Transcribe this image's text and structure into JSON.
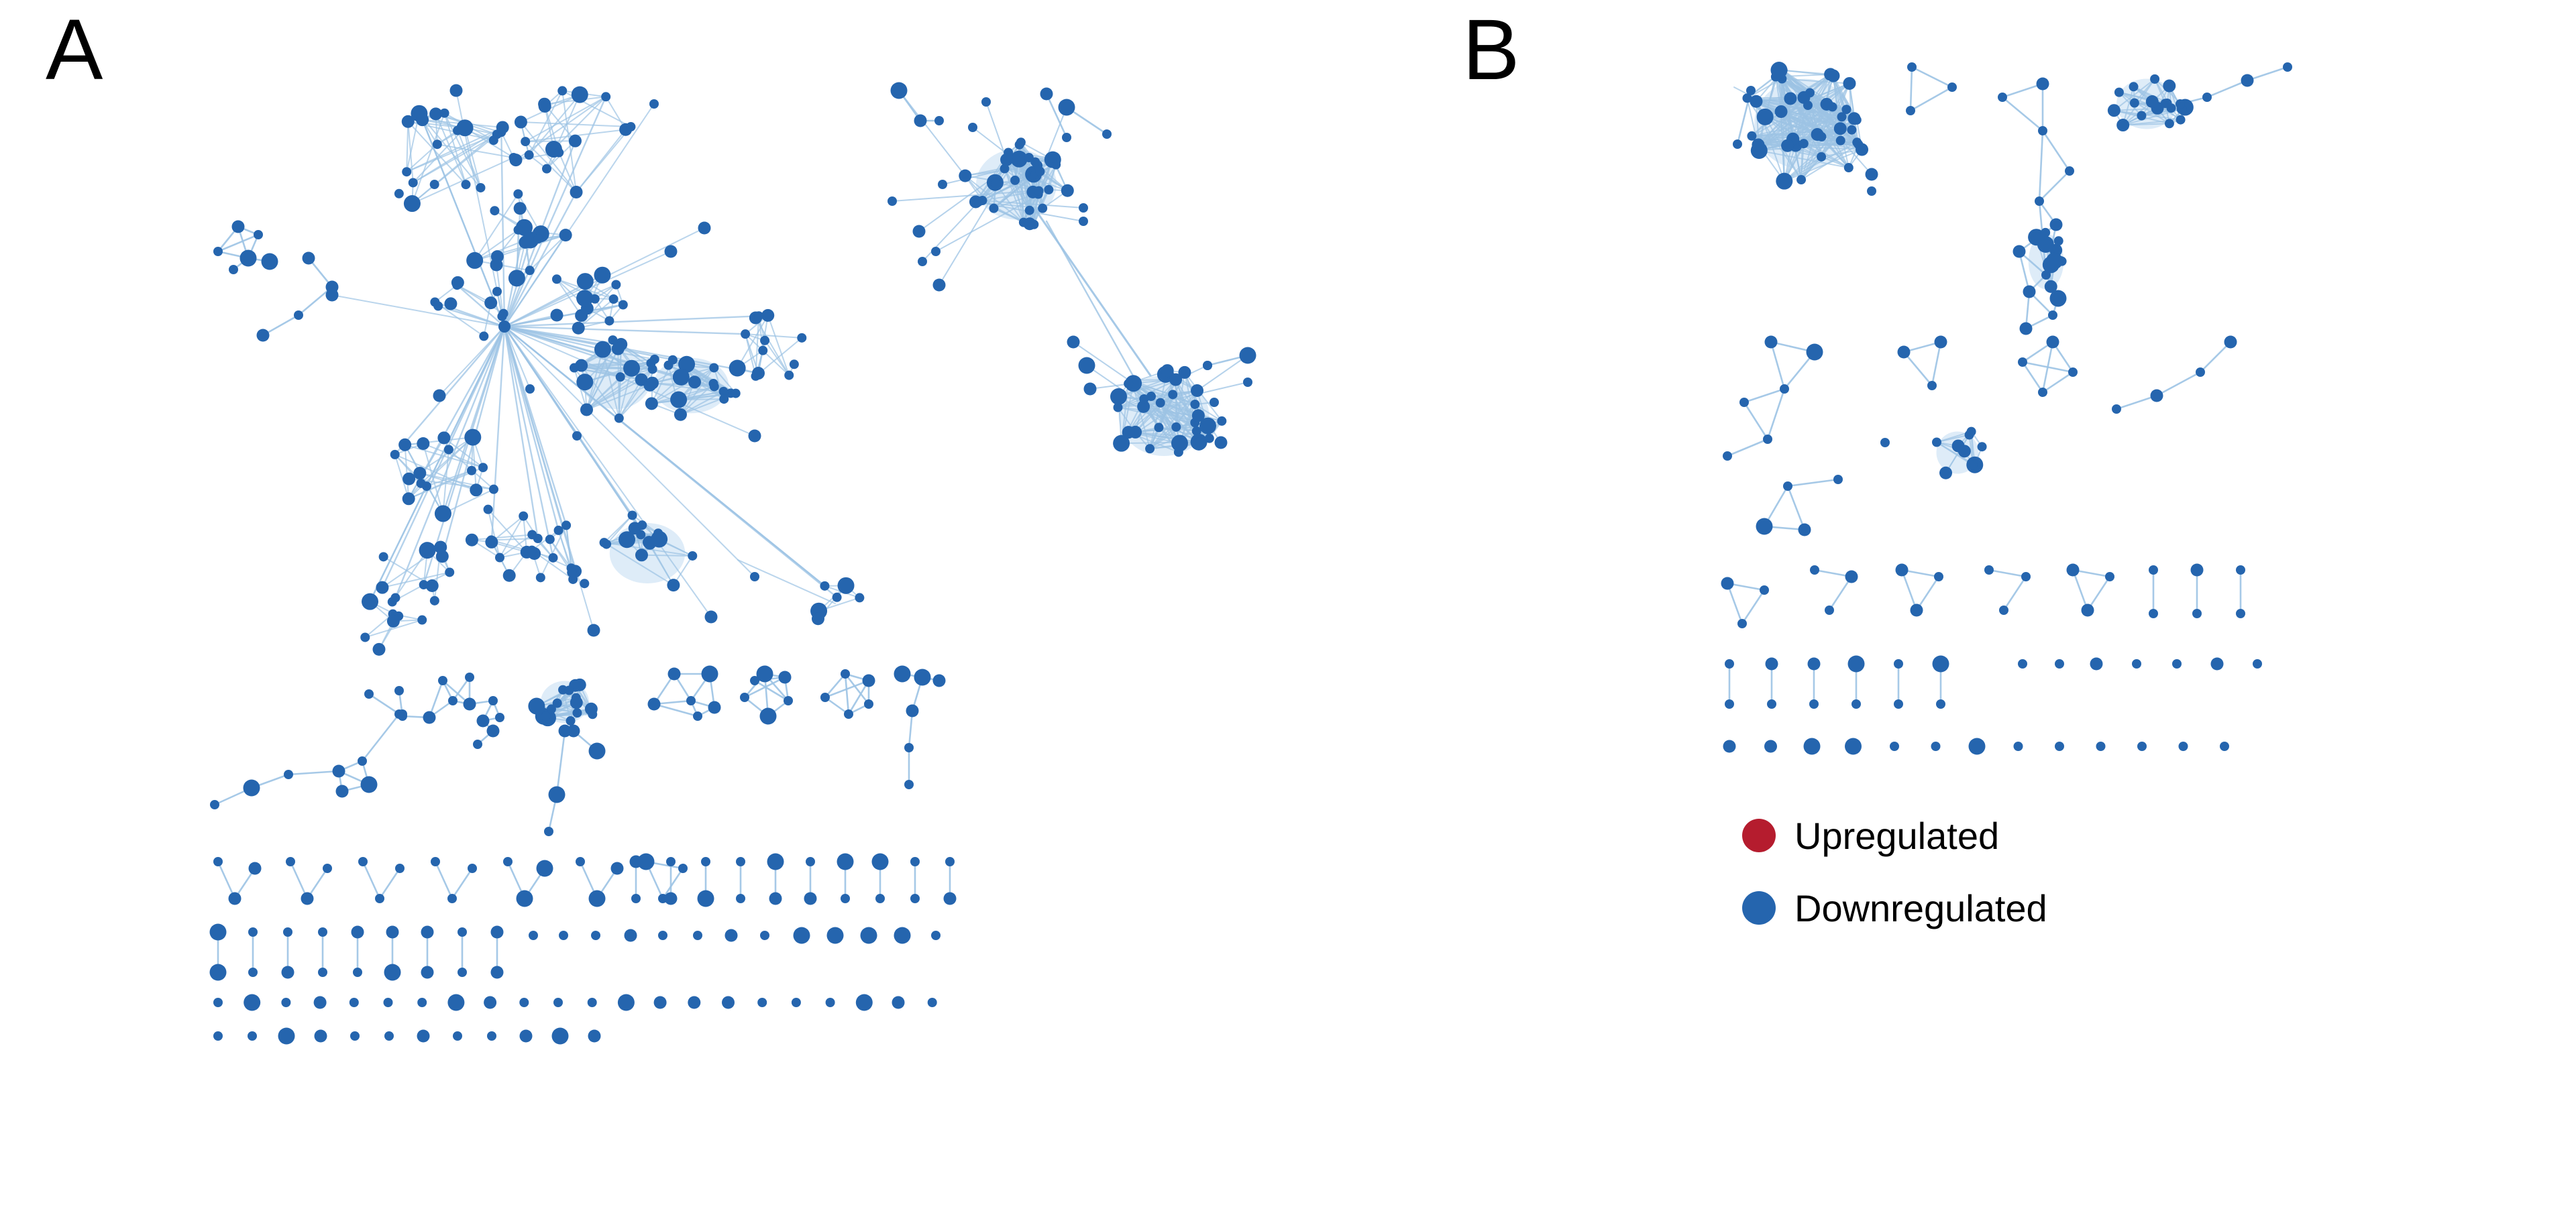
{
  "panels": [
    {
      "label": "A"
    },
    {
      "label": "B"
    }
  ],
  "legend": {
    "items": [
      {
        "label": "Upregulated",
        "color": "#B51C2E"
      },
      {
        "label": "Downregulated",
        "color": "#2565AE"
      }
    ]
  },
  "colors": {
    "node": "#2565AE",
    "edge": "#9CC3E4",
    "hub_fill": "#D6E7F6"
  }
}
